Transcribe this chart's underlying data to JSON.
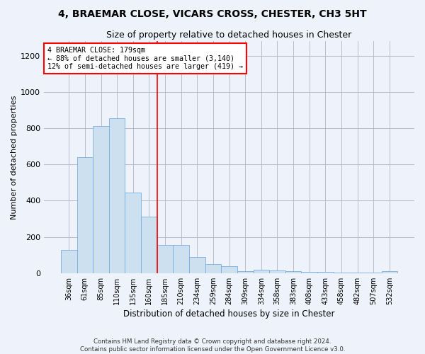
{
  "title": "4, BRAEMAR CLOSE, VICARS CROSS, CHESTER, CH3 5HT",
  "subtitle": "Size of property relative to detached houses in Chester",
  "xlabel": "Distribution of detached houses by size in Chester",
  "ylabel": "Number of detached properties",
  "bar_color": "#cce0f0",
  "bar_edge_color": "#7aade0",
  "background_color": "#eef2fb",
  "grid_color": "#bbbbcc",
  "categories": [
    "36sqm",
    "61sqm",
    "85sqm",
    "110sqm",
    "135sqm",
    "160sqm",
    "185sqm",
    "210sqm",
    "234sqm",
    "259sqm",
    "284sqm",
    "309sqm",
    "334sqm",
    "358sqm",
    "383sqm",
    "408sqm",
    "433sqm",
    "458sqm",
    "482sqm",
    "507sqm",
    "532sqm"
  ],
  "values": [
    130,
    640,
    810,
    855,
    445,
    310,
    155,
    155,
    90,
    50,
    40,
    12,
    18,
    15,
    10,
    8,
    6,
    5,
    4,
    4,
    10
  ],
  "marker_label": "4 BRAEMAR CLOSE: 179sqm",
  "annotation_line1": "← 88% of detached houses are smaller (3,140)",
  "annotation_line2": "12% of semi-detached houses are larger (419) →",
  "red_line_index": 6,
  "ylim": [
    0,
    1280
  ],
  "yticks": [
    0,
    200,
    400,
    600,
    800,
    1000,
    1200
  ],
  "footer": "Contains HM Land Registry data © Crown copyright and database right 2024.\nContains public sector information licensed under the Open Government Licence v3.0."
}
